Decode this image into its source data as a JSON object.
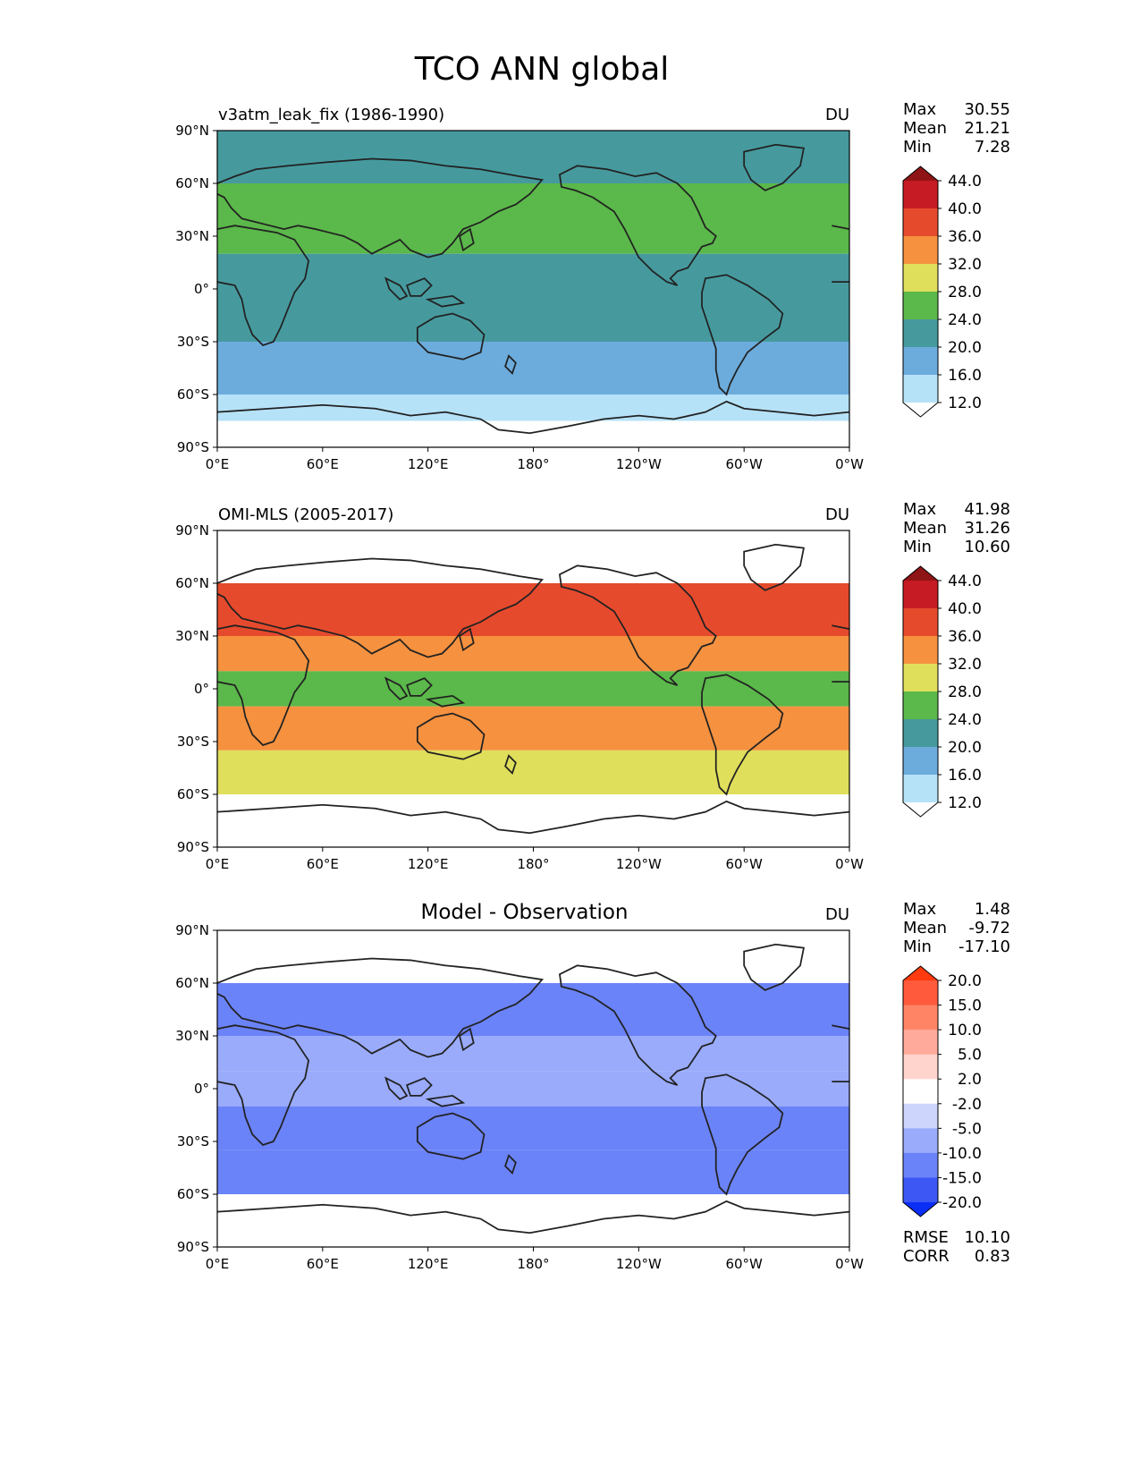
{
  "figure": {
    "title": "TCO ANN global",
    "lat_ticks": [
      "90°N",
      "60°N",
      "30°N",
      "0°",
      "30°S",
      "60°S",
      "90°S"
    ],
    "lon_ticks": [
      "0°E",
      "60°E",
      "120°E",
      "180°",
      "120°W",
      "60°W",
      "0°W"
    ]
  },
  "panels": [
    {
      "id": "model",
      "left_title": "v3atm_leak_fix (1986-1990)",
      "center_title": "",
      "units": "DU",
      "stats": [
        {
          "label": "Max",
          "value": "30.55"
        },
        {
          "label": "Mean",
          "value": "21.21"
        },
        {
          "label": "Min",
          "value": "7.28"
        }
      ],
      "extra_stats": [],
      "colorbar": {
        "levels": [
          "44.0",
          "40.0",
          "36.0",
          "32.0",
          "28.0",
          "24.0",
          "20.0",
          "16.0",
          "12.0"
        ],
        "top_color": "#8e1416",
        "colors": [
          "#c61b24",
          "#e64a2d",
          "#f5913f",
          "#e0df5c",
          "#5bb84a",
          "#469a9e",
          "#6cacdc",
          "#b6e2f8"
        ],
        "bottom_color": "#ffffff"
      },
      "field": {
        "description": "model total column ozone",
        "coverage": "global",
        "bands": [
          {
            "lat": [
              60,
              90
            ],
            "value": 22
          },
          {
            "lat": [
              20,
              60
            ],
            "value": 26
          },
          {
            "lat": [
              -30,
              20
            ],
            "value": 21
          },
          {
            "lat": [
              -60,
              -30
            ],
            "value": 18
          },
          {
            "lat": [
              -75,
              -60
            ],
            "value": 14
          },
          {
            "lat": [
              -90,
              -75
            ],
            "value": 10
          }
        ]
      }
    },
    {
      "id": "obs",
      "left_title": "OMI-MLS (2005-2017)",
      "center_title": "",
      "units": "DU",
      "stats": [
        {
          "label": "Max",
          "value": "41.98"
        },
        {
          "label": "Mean",
          "value": "31.26"
        },
        {
          "label": "Min",
          "value": "10.60"
        }
      ],
      "extra_stats": [],
      "colorbar": {
        "levels": [
          "44.0",
          "40.0",
          "36.0",
          "32.0",
          "28.0",
          "24.0",
          "20.0",
          "16.0",
          "12.0"
        ],
        "top_color": "#8e1416",
        "colors": [
          "#c61b24",
          "#e64a2d",
          "#f5913f",
          "#e0df5c",
          "#5bb84a",
          "#469a9e",
          "#6cacdc",
          "#b6e2f8"
        ],
        "bottom_color": "#ffffff"
      },
      "field": {
        "description": "observed total column ozone",
        "coverage": "60S-60N",
        "bands": [
          {
            "lat": [
              30,
              60
            ],
            "value": 37
          },
          {
            "lat": [
              10,
              30
            ],
            "value": 34
          },
          {
            "lat": [
              -10,
              10
            ],
            "value": 26
          },
          {
            "lat": [
              -35,
              -10
            ],
            "value": 33
          },
          {
            "lat": [
              -60,
              -35
            ],
            "value": 29
          }
        ]
      }
    },
    {
      "id": "diff",
      "left_title": "",
      "center_title": "Model - Observation",
      "units": "DU",
      "stats": [
        {
          "label": "Max",
          "value": "1.48"
        },
        {
          "label": "Mean",
          "value": "-9.72"
        },
        {
          "label": "Min",
          "value": "-17.10"
        }
      ],
      "extra_stats": [
        {
          "label": "RMSE",
          "value": "10.10"
        },
        {
          "label": "CORR",
          "value": "0.83"
        }
      ],
      "colorbar": {
        "levels": [
          "20.0",
          "15.0",
          "10.0",
          "5.0",
          "2.0",
          "-2.0",
          "-5.0",
          "-10.0",
          "-15.0",
          "-20.0"
        ],
        "top_color": "#ff3a0f",
        "colors": [
          "#ff5a3c",
          "#ff8466",
          "#ffaa9a",
          "#ffd4cc",
          "#ffffff",
          "#cdd5fd",
          "#9aabfc",
          "#6b83f8",
          "#3d57f5"
        ],
        "bottom_color": "#0a2ef5"
      },
      "field": {
        "description": "model minus observation difference",
        "coverage": "60S-60N",
        "bands": [
          {
            "lat": [
              30,
              60
            ],
            "value": -12
          },
          {
            "lat": [
              10,
              30
            ],
            "value": -9
          },
          {
            "lat": [
              -10,
              10
            ],
            "value": -6
          },
          {
            "lat": [
              -35,
              -10
            ],
            "value": -13
          },
          {
            "lat": [
              -60,
              -35
            ],
            "value": -11
          }
        ]
      }
    }
  ]
}
